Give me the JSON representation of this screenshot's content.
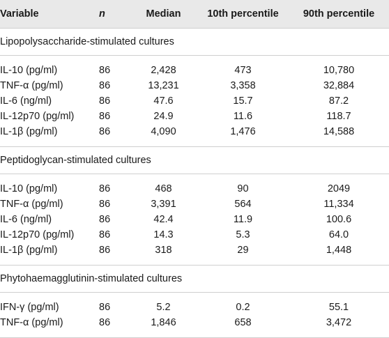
{
  "headers": {
    "variable": "Variable",
    "n": "n",
    "median": "Median",
    "p10": "10th percentile",
    "p90": "90th percentile"
  },
  "sections": [
    {
      "title": "Lipopolysaccharide-stimulated cultures",
      "rows": [
        {
          "variable": "IL-10 (pg/ml)",
          "n": "86",
          "median": "2,428",
          "p10": "473",
          "p90": "10,780"
        },
        {
          "variable": "TNF-α (pg/ml)",
          "n": "86",
          "median": "13,231",
          "p10": "3,358",
          "p90": "32,884"
        },
        {
          "variable": "IL-6 (ng/ml)",
          "n": "86",
          "median": "47.6",
          "p10": "15.7",
          "p90": "87.2"
        },
        {
          "variable": "IL-12p70 (pg/ml)",
          "n": "86",
          "median": "24.9",
          "p10": "11.6",
          "p90": "118.7"
        },
        {
          "variable": "IL-1β (pg/ml)",
          "n": "86",
          "median": "4,090",
          "p10": "1,476",
          "p90": "14,588"
        }
      ]
    },
    {
      "title": "Peptidoglycan-stimulated cultures",
      "rows": [
        {
          "variable": "IL-10 (pg/ml)",
          "n": "86",
          "median": "468",
          "p10": "90",
          "p90": "2049"
        },
        {
          "variable": "TNF-α (pg/ml)",
          "n": "86",
          "median": "3,391",
          "p10": "564",
          "p90": "11,334"
        },
        {
          "variable": "IL-6 (ng/ml)",
          "n": "86",
          "median": "42.4",
          "p10": "11.9",
          "p90": "100.6"
        },
        {
          "variable": "IL-12p70 (pg/ml)",
          "n": "86",
          "median": "14.3",
          "p10": "5.3",
          "p90": "64.0"
        },
        {
          "variable": "IL-1β (pg/ml)",
          "n": "86",
          "median": "318",
          "p10": "29",
          "p90": "1,448"
        }
      ]
    },
    {
      "title": "Phytohaemagglutinin-stimulated cultures",
      "rows": [
        {
          "variable": "IFN-γ (pg/ml)",
          "n": "86",
          "median": "5.2",
          "p10": "0.2",
          "p90": "55.1"
        },
        {
          "variable": "TNF-α (pg/ml)",
          "n": "86",
          "median": "1,846",
          "p10": "658",
          "p90": "3,472"
        }
      ]
    }
  ]
}
